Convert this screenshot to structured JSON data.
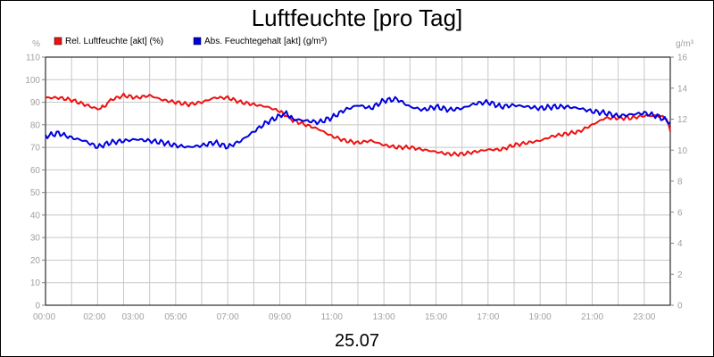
{
  "chart_data": {
    "type": "line",
    "title": "Luftfeuchte [pro Tag]",
    "date_label": "25.07",
    "y_left": {
      "unit": "%",
      "min": 0,
      "max": 110,
      "ticks": [
        "0",
        "10",
        "20",
        "30",
        "40",
        "50",
        "60",
        "70",
        "80",
        "90",
        "100",
        "110"
      ]
    },
    "y_right": {
      "unit": "g/m³",
      "min": 0,
      "max": 16,
      "ticks": [
        "0",
        "2",
        "4",
        "6",
        "8",
        "10",
        "12",
        "14",
        "16"
      ]
    },
    "x_ticks": [
      "00:00",
      "02:00",
      "03:00",
      "05:00",
      "07:00",
      "09:00",
      "11:00",
      "13:00",
      "15:00",
      "17:00",
      "19:00",
      "21:00",
      "23:00"
    ],
    "x_tick_hours": [
      0,
      2,
      3,
      5,
      7,
      9,
      11,
      13,
      15,
      17,
      19,
      21,
      23
    ],
    "grid": true,
    "legend": [
      {
        "name": "Rel. Luftfeuchte [akt] (%)",
        "color": "#ee1111"
      },
      {
        "name": "Abs. Feuchtegehalt [akt] (g/m³)",
        "color": "#0000dd"
      }
    ],
    "series": [
      {
        "name": "Rel. Luftfeuchte [akt] (%)",
        "axis": "left",
        "color": "#ee1111",
        "x": [
          0,
          0.5,
          1,
          1.5,
          2,
          2.25,
          2.5,
          3,
          3.5,
          4,
          4.5,
          5,
          5.5,
          6,
          6.5,
          7,
          7.5,
          8,
          8.5,
          9,
          9.25,
          9.5,
          10,
          10.5,
          11,
          11.5,
          12,
          12.5,
          13,
          13.5,
          14,
          14.5,
          15,
          15.5,
          16,
          16.5,
          17,
          17.5,
          18,
          18.5,
          19,
          19.5,
          20,
          20.5,
          21,
          21.5,
          22,
          22.5,
          23,
          23.5,
          23.85,
          24
        ],
        "values": [
          92,
          92,
          91,
          89,
          87,
          88,
          91,
          93,
          92,
          93,
          91,
          90,
          89,
          90,
          92,
          92,
          90,
          89,
          88,
          86,
          84,
          82,
          80,
          78,
          75,
          73,
          72,
          73,
          71,
          70,
          70,
          69,
          68,
          67,
          67,
          68,
          69,
          69,
          71,
          72,
          73,
          75,
          76,
          77,
          80,
          83,
          83,
          83,
          84,
          84,
          83,
          77
        ]
      },
      {
        "name": "Abs. Feuchtegehalt [akt] (g/m³)",
        "axis": "right",
        "color": "#0000dd",
        "x": [
          0,
          0.5,
          1,
          1.5,
          2,
          2.5,
          3,
          3.5,
          4,
          4.5,
          5,
          5.5,
          6,
          6.5,
          7,
          7.5,
          8,
          8.5,
          9,
          9.25,
          9.5,
          10,
          10.5,
          11,
          11.5,
          12,
          12.5,
          13,
          13.5,
          14,
          14.5,
          15,
          15.5,
          16,
          16.5,
          17,
          17.5,
          18,
          18.5,
          19,
          19.5,
          20,
          20.5,
          21,
          21.5,
          22,
          22.5,
          23,
          23.5,
          24
        ],
        "values": [
          10.9,
          11.1,
          10.8,
          10.6,
          10.2,
          10.5,
          10.6,
          10.7,
          10.6,
          10.5,
          10.3,
          10.2,
          10.3,
          10.5,
          10.2,
          10.6,
          11.2,
          11.8,
          12.2,
          12.4,
          12.0,
          11.9,
          11.8,
          12.1,
          12.6,
          12.9,
          12.7,
          13.2,
          13.3,
          12.8,
          12.6,
          12.8,
          12.6,
          12.7,
          13.0,
          13.1,
          12.8,
          12.9,
          12.8,
          12.7,
          12.8,
          12.8,
          12.7,
          12.5,
          12.4,
          12.2,
          12.3,
          12.4,
          12.2,
          11.8
        ]
      }
    ]
  }
}
